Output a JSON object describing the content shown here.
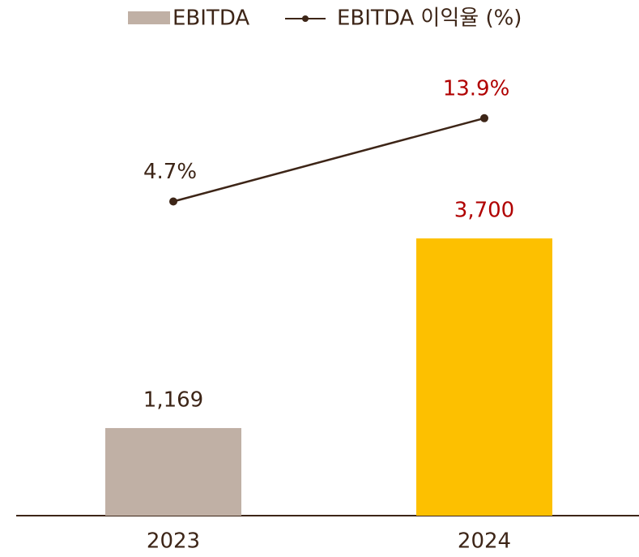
{
  "chart_data": {
    "type": "bar",
    "categories": [
      "2023",
      "2024"
    ],
    "ylim": [
      0,
      5800
    ],
    "y2lim": [
      -30,
      18
    ],
    "legend": "top",
    "series": [
      {
        "name": "EBITDA",
        "type": "bar",
        "color": "#c0b0a5",
        "colors": [
          "#c0b0a5",
          "#fdc000"
        ],
        "values": [
          1169,
          3700
        ],
        "value_labels": [
          "1,169",
          "3,700"
        ],
        "value_label_colors": [
          "#3d2517",
          "#b00000"
        ]
      },
      {
        "name": "EBITDA 이익율 (%)",
        "type": "line",
        "axis": "y2",
        "color": "#3d2517",
        "values": [
          4.7,
          13.9
        ],
        "value_labels": [
          "4.7%",
          "13.9%"
        ],
        "value_label_colors": [
          "#3d2517",
          "#b00000"
        ]
      }
    ]
  }
}
